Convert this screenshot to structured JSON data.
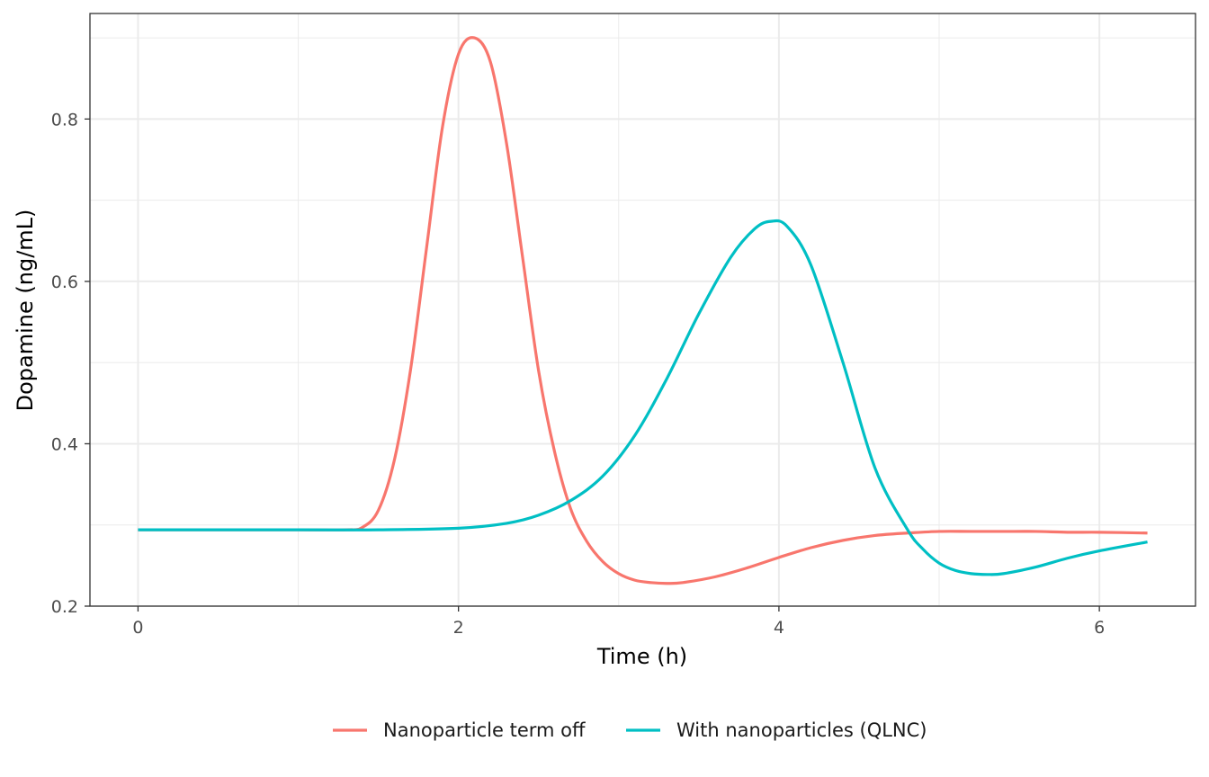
{
  "chart_data": {
    "type": "line",
    "title": "",
    "xlabel": "Time (h)",
    "ylabel": "Dopamine (ng/mL)",
    "xlim": [
      -0.3,
      6.6
    ],
    "ylim": [
      0.2,
      0.93
    ],
    "x_ticks": [
      0,
      2,
      4,
      6
    ],
    "x_tick_labels": [
      "0",
      "2",
      "4",
      "6"
    ],
    "y_ticks": [
      0.2,
      0.4,
      0.6,
      0.8
    ],
    "y_tick_labels": [
      "0.2",
      "0.4",
      "0.6",
      "0.8"
    ],
    "grid": true,
    "legend_position": "bottom",
    "series": [
      {
        "name": "Nanoparticle term off",
        "color": "#F8766D",
        "x": [
          0,
          0.5,
          1.0,
          1.3,
          1.4,
          1.5,
          1.6,
          1.7,
          1.8,
          1.9,
          2.0,
          2.1,
          2.2,
          2.3,
          2.4,
          2.5,
          2.6,
          2.7,
          2.8,
          2.9,
          3.0,
          3.1,
          3.2,
          3.3,
          3.4,
          3.6,
          3.8,
          4.0,
          4.2,
          4.4,
          4.6,
          4.8,
          5.0,
          5.2,
          5.4,
          5.6,
          5.8,
          6.0,
          6.3
        ],
        "y": [
          0.294,
          0.294,
          0.294,
          0.294,
          0.297,
          0.318,
          0.38,
          0.49,
          0.64,
          0.79,
          0.88,
          0.9,
          0.87,
          0.77,
          0.63,
          0.49,
          0.39,
          0.32,
          0.28,
          0.255,
          0.24,
          0.232,
          0.229,
          0.228,
          0.229,
          0.236,
          0.247,
          0.26,
          0.272,
          0.281,
          0.287,
          0.29,
          0.292,
          0.292,
          0.292,
          0.292,
          0.291,
          0.291,
          0.29
        ]
      },
      {
        "name": "With nanoparticles (QLNC)",
        "color": "#00BFC4",
        "x": [
          0,
          1.0,
          1.5,
          2.0,
          2.3,
          2.5,
          2.7,
          2.9,
          3.1,
          3.3,
          3.5,
          3.7,
          3.85,
          3.95,
          4.05,
          4.2,
          4.4,
          4.6,
          4.8,
          4.9,
          5.0,
          5.1,
          5.2,
          5.3,
          5.4,
          5.6,
          5.8,
          6.0,
          6.3
        ],
        "y": [
          0.294,
          0.294,
          0.294,
          0.296,
          0.302,
          0.312,
          0.33,
          0.36,
          0.41,
          0.48,
          0.56,
          0.63,
          0.665,
          0.674,
          0.668,
          0.62,
          0.5,
          0.37,
          0.295,
          0.27,
          0.253,
          0.244,
          0.24,
          0.239,
          0.24,
          0.248,
          0.259,
          0.268,
          0.279
        ]
      }
    ]
  }
}
